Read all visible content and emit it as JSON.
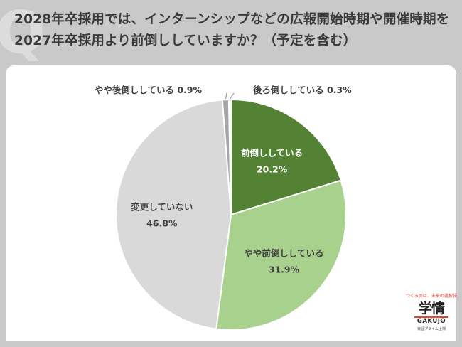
{
  "title": "2028年卒採用では、インターンシップなどの広報開始時期や開催時期を2027年卒採用より前倒ししていますか？（予定を含む）",
  "watermark_letter": "Q",
  "logo": {
    "tagline": "つくるのは、未来の選択肢",
    "mark": "学情",
    "wordmark": "GAKUJO",
    "subline": "東証プライム上場"
  },
  "colors": {
    "background": "#c9c9c9",
    "panel": "#ffffff",
    "title": "#3a3a3a",
    "accent": "#e0442f"
  },
  "chart_data": {
    "type": "pie",
    "start_angle_deg": 0,
    "direction": "clockwise",
    "slices": [
      {
        "label": "前倒ししている",
        "value": 20.2,
        "value_label": "20.2%",
        "color": "#548235",
        "label_color": "#ffffff",
        "label_position": "inside"
      },
      {
        "label": "やや前倒ししている",
        "value": 31.9,
        "value_label": "31.9%",
        "color": "#a9d18e",
        "label_color": "#404040",
        "label_position": "inside"
      },
      {
        "label": "変更していない",
        "value": 46.8,
        "value_label": "46.8%",
        "color": "#d9d9d9",
        "label_color": "#404040",
        "label_position": "inside"
      },
      {
        "label": "やや後倒ししている",
        "value": 0.9,
        "value_label": "0.9%",
        "color": "#a6a6a6",
        "label_color": "#404040",
        "label_position": "outside-left"
      },
      {
        "label": "後ろ倒ししている",
        "value": 0.3,
        "value_label": "0.3%",
        "color": "#7f7f7f",
        "label_color": "#404040",
        "label_position": "outside-right"
      }
    ]
  }
}
